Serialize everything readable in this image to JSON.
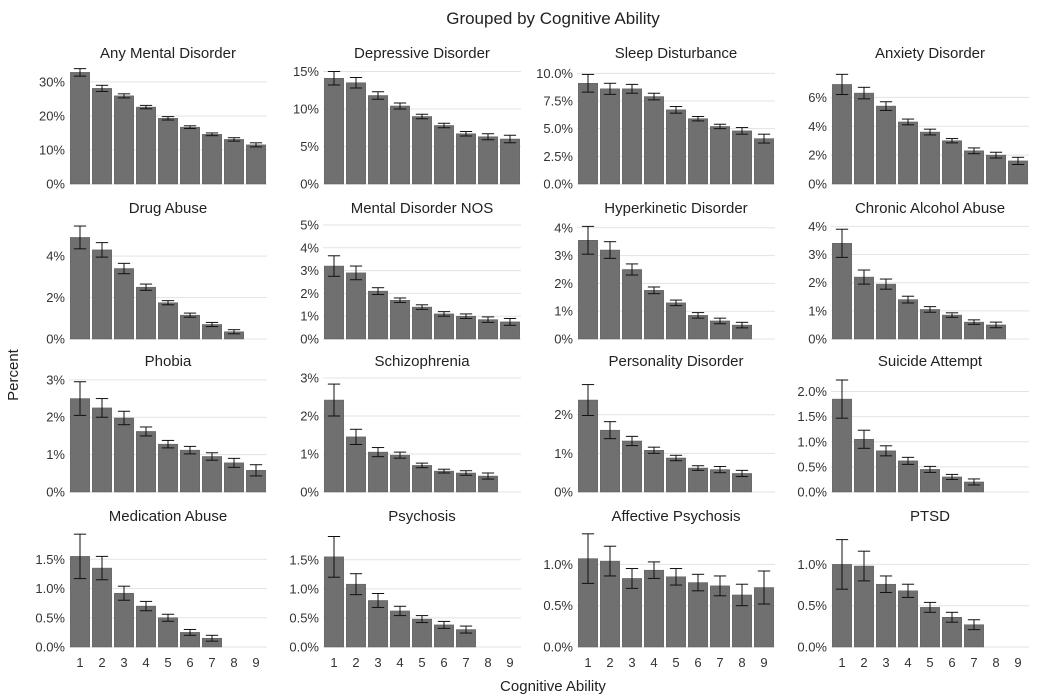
{
  "chart_data": {
    "type": "bar",
    "title": "Grouped by Cognitive Ability",
    "xlabel": "Cognitive Ability",
    "ylabel": "Percent",
    "categories": [
      "1",
      "2",
      "3",
      "4",
      "5",
      "6",
      "7",
      "8",
      "9"
    ],
    "colors": {
      "bar": "#707070",
      "bar_edge": "#5a5a5a",
      "error_bar": "#111111",
      "grid": "#e3e3e3"
    },
    "error_bars": true,
    "panels": [
      {
        "title": "Any Mental Disorder",
        "values": [
          32.8,
          28.1,
          25.9,
          22.6,
          19.3,
          16.7,
          14.6,
          13.1,
          11.5
        ],
        "errors": [
          1.1,
          0.9,
          0.6,
          0.5,
          0.5,
          0.4,
          0.4,
          0.5,
          0.6
        ],
        "ylim": [
          0,
          33.5
        ],
        "ticks": [
          0,
          10,
          20,
          30
        ],
        "tick_labels": [
          "0%",
          "10%",
          "20%",
          "30%"
        ]
      },
      {
        "title": "Depressive Disorder",
        "values": [
          14.1,
          13.5,
          11.8,
          10.4,
          9.0,
          7.8,
          6.7,
          6.3,
          6.0
        ],
        "errors": [
          0.9,
          0.7,
          0.5,
          0.4,
          0.3,
          0.3,
          0.3,
          0.4,
          0.5
        ],
        "ylim": [
          0,
          15.2
        ],
        "ticks": [
          0,
          5,
          10,
          15
        ],
        "tick_labels": [
          "0%",
          "5%",
          "10%",
          "15%"
        ]
      },
      {
        "title": "Sleep Disturbance",
        "values": [
          9.1,
          8.6,
          8.6,
          7.9,
          6.7,
          5.9,
          5.2,
          4.8,
          4.1
        ],
        "errors": [
          0.8,
          0.5,
          0.4,
          0.3,
          0.3,
          0.2,
          0.2,
          0.3,
          0.4
        ],
        "ylim": [
          0,
          10.3
        ],
        "ticks": [
          0,
          2.5,
          5,
          7.5,
          10
        ],
        "tick_labels": [
          "0.0%",
          "2.5%",
          "5.0%",
          "7.5%",
          "10.0%"
        ]
      },
      {
        "title": "Anxiety Disorder",
        "values": [
          6.9,
          6.3,
          5.4,
          4.3,
          3.6,
          3.0,
          2.3,
          2.0,
          1.6
        ],
        "errors": [
          0.7,
          0.4,
          0.3,
          0.2,
          0.2,
          0.15,
          0.2,
          0.2,
          0.25
        ],
        "ylim": [
          0,
          7.9
        ],
        "ticks": [
          0,
          2,
          4,
          6
        ],
        "tick_labels": [
          "0%",
          "2%",
          "4%",
          "6%"
        ]
      },
      {
        "title": "Drug Abuse",
        "values": [
          4.9,
          4.3,
          3.4,
          2.5,
          1.75,
          1.15,
          0.7,
          0.35,
          0
        ],
        "errors": [
          0.55,
          0.35,
          0.25,
          0.15,
          0.1,
          0.1,
          0.1,
          0.1,
          0
        ],
        "ylim": [
          0,
          5.5
        ],
        "ticks": [
          0,
          2,
          4
        ],
        "tick_labels": [
          "0%",
          "2%",
          "4%"
        ]
      },
      {
        "title": "Mental Disorder NOS",
        "values": [
          3.2,
          2.9,
          2.1,
          1.7,
          1.4,
          1.1,
          1.0,
          0.85,
          0.75
        ],
        "errors": [
          0.45,
          0.3,
          0.15,
          0.1,
          0.1,
          0.1,
          0.1,
          0.12,
          0.15
        ],
        "ylim": [
          0,
          5.0
        ],
        "ticks": [
          0,
          1,
          2,
          3,
          4,
          5
        ],
        "tick_labels": [
          "0%",
          "1%",
          "2%",
          "3%",
          "4%",
          "5%"
        ]
      },
      {
        "title": "Hyperkinetic Disorder",
        "values": [
          3.55,
          3.2,
          2.5,
          1.75,
          1.3,
          0.85,
          0.65,
          0.5,
          0
        ],
        "errors": [
          0.5,
          0.3,
          0.2,
          0.12,
          0.1,
          0.1,
          0.1,
          0.1,
          0
        ],
        "ylim": [
          0,
          4.1
        ],
        "ticks": [
          0,
          1,
          2,
          3,
          4
        ],
        "tick_labels": [
          "0%",
          "1%",
          "2%",
          "3%",
          "4%"
        ]
      },
      {
        "title": "Chronic Alcohol Abuse",
        "values": [
          3.4,
          2.2,
          1.95,
          1.4,
          1.05,
          0.85,
          0.6,
          0.5,
          0
        ],
        "errors": [
          0.5,
          0.25,
          0.18,
          0.12,
          0.1,
          0.08,
          0.08,
          0.1,
          0
        ],
        "ylim": [
          0,
          4.05
        ],
        "ticks": [
          0,
          1,
          2,
          3,
          4
        ],
        "tick_labels": [
          "0%",
          "1%",
          "2%",
          "3%",
          "4%"
        ]
      },
      {
        "title": "Phobia",
        "values": [
          2.5,
          2.25,
          1.98,
          1.62,
          1.28,
          1.12,
          0.95,
          0.78,
          0.58
        ],
        "errors": [
          0.45,
          0.25,
          0.18,
          0.12,
          0.1,
          0.1,
          0.1,
          0.12,
          0.15
        ],
        "ylim": [
          0,
          3.05
        ],
        "ticks": [
          0,
          1,
          2,
          3
        ],
        "tick_labels": [
          "0%",
          "1%",
          "2%",
          "3%"
        ]
      },
      {
        "title": "Schizophrenia",
        "values": [
          2.42,
          1.45,
          1.05,
          0.97,
          0.7,
          0.55,
          0.5,
          0.42,
          0
        ],
        "errors": [
          0.42,
          0.2,
          0.12,
          0.08,
          0.06,
          0.05,
          0.06,
          0.08,
          0
        ],
        "ylim": [
          0,
          3.0
        ],
        "ticks": [
          0,
          1,
          2,
          3
        ],
        "tick_labels": [
          "0%",
          "1%",
          "2%",
          "3%"
        ]
      },
      {
        "title": "Personality Disorder",
        "values": [
          2.38,
          1.6,
          1.32,
          1.08,
          0.88,
          0.62,
          0.58,
          0.48,
          0
        ],
        "errors": [
          0.4,
          0.22,
          0.12,
          0.08,
          0.07,
          0.06,
          0.08,
          0.08,
          0
        ],
        "ylim": [
          0,
          2.95
        ],
        "ticks": [
          0,
          1,
          2
        ],
        "tick_labels": [
          "0%",
          "1%",
          "2%"
        ]
      },
      {
        "title": "Suicide Attempt",
        "values": [
          1.85,
          1.05,
          0.82,
          0.62,
          0.45,
          0.3,
          0.2,
          0,
          0
        ],
        "errors": [
          0.38,
          0.18,
          0.1,
          0.07,
          0.06,
          0.05,
          0.06,
          0,
          0
        ],
        "ylim": [
          0,
          2.27
        ],
        "ticks": [
          0,
          0.5,
          1,
          1.5,
          2
        ],
        "tick_labels": [
          "0.0%",
          "0.5%",
          "1.0%",
          "1.5%",
          "2.0%"
        ]
      },
      {
        "title": "Medication Abuse",
        "values": [
          1.55,
          1.35,
          0.92,
          0.7,
          0.5,
          0.25,
          0.15,
          0,
          0
        ],
        "errors": [
          0.38,
          0.2,
          0.12,
          0.08,
          0.06,
          0.05,
          0.05,
          0,
          0
        ],
        "ylim": [
          0,
          1.95
        ],
        "ticks": [
          0,
          0.5,
          1,
          1.5
        ],
        "tick_labels": [
          "0.0%",
          "0.5%",
          "1.0%",
          "1.5%"
        ]
      },
      {
        "title": "Psychosis",
        "values": [
          1.55,
          1.08,
          0.8,
          0.62,
          0.48,
          0.38,
          0.3,
          0,
          0
        ],
        "errors": [
          0.35,
          0.18,
          0.12,
          0.08,
          0.06,
          0.06,
          0.06,
          0,
          0
        ],
        "ylim": [
          0,
          1.96
        ],
        "ticks": [
          0,
          0.5,
          1,
          1.5
        ],
        "tick_labels": [
          "0.0%",
          "0.5%",
          "1.0%",
          "1.5%"
        ]
      },
      {
        "title": "Affective Psychosis",
        "values": [
          1.07,
          1.04,
          0.83,
          0.93,
          0.85,
          0.78,
          0.74,
          0.63,
          0.72
        ],
        "errors": [
          0.3,
          0.18,
          0.12,
          0.1,
          0.1,
          0.1,
          0.12,
          0.13,
          0.2
        ],
        "ylim": [
          0,
          1.38
        ],
        "ticks": [
          0,
          0.5,
          1
        ],
        "tick_labels": [
          "0.0%",
          "0.5%",
          "1.0%"
        ]
      },
      {
        "title": "PTSD",
        "values": [
          1.0,
          0.98,
          0.76,
          0.68,
          0.48,
          0.36,
          0.27,
          0,
          0
        ],
        "errors": [
          0.3,
          0.18,
          0.1,
          0.08,
          0.06,
          0.06,
          0.06,
          0,
          0
        ],
        "ylim": [
          0,
          1.38
        ],
        "ticks": [
          0,
          0.5,
          1
        ],
        "tick_labels": [
          "0.0%",
          "0.5%",
          "1.0%"
        ]
      }
    ]
  }
}
